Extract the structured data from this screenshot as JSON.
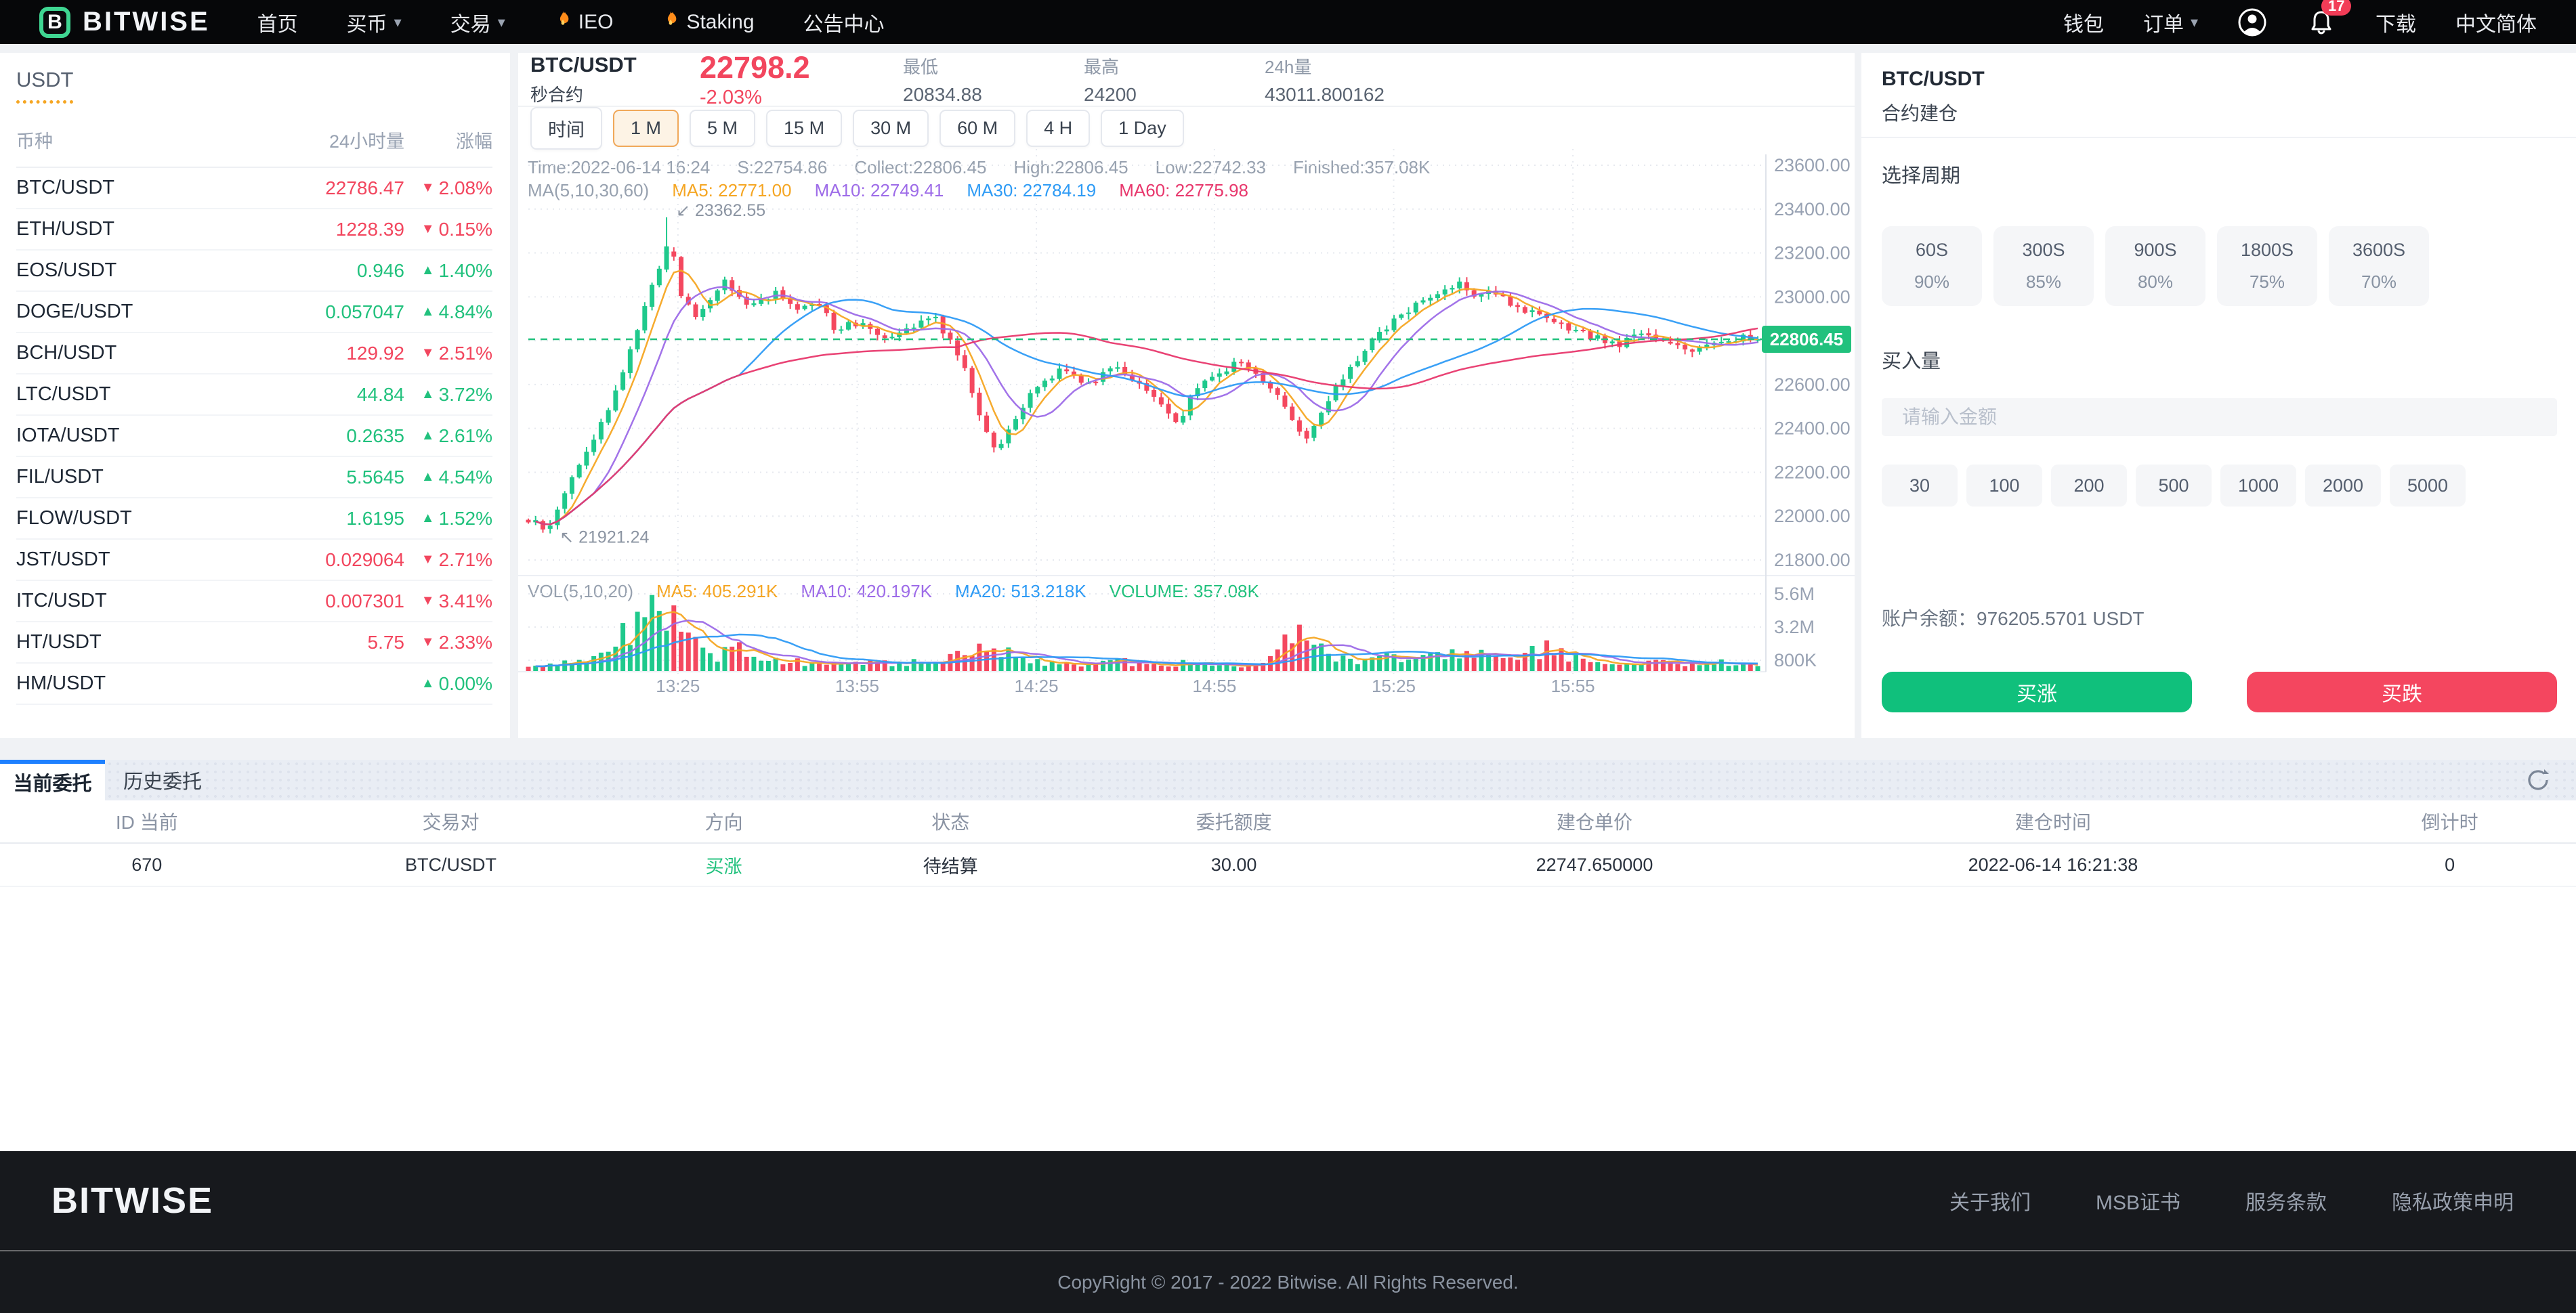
{
  "colors": {
    "green": "#21C17D",
    "red": "#F2465E",
    "blue": "#1E80FF",
    "orange": "#F5A623",
    "ma_purple": "#9D6BE8",
    "ma_blue": "#2E9BF5",
    "ma_pink": "#E8386D",
    "candle_up": "#1FC98C",
    "candle_down": "#F4485F"
  },
  "nav": {
    "brand": "BITWISE",
    "items": [
      {
        "label": "首页"
      },
      {
        "label": "买币",
        "caret": true
      },
      {
        "label": "交易",
        "caret": true
      },
      {
        "label": "IEO",
        "fire": true
      },
      {
        "label": "Staking",
        "fire": true
      },
      {
        "label": "公告中心"
      }
    ],
    "wallet": "钱包",
    "orders_label": "订单",
    "badge": "17",
    "download": "下载",
    "language": "中文简体"
  },
  "sidebar": {
    "tab": "USDT",
    "headers": [
      "币种",
      "24小时量",
      "涨幅"
    ],
    "pairs": [
      {
        "name": "BTC/USDT",
        "volume": "22786.47",
        "change": "2.08%",
        "dir": "down"
      },
      {
        "name": "ETH/USDT",
        "volume": "1228.39",
        "change": "0.15%",
        "dir": "down"
      },
      {
        "name": "EOS/USDT",
        "volume": "0.946",
        "change": "1.40%",
        "dir": "up"
      },
      {
        "name": "DOGE/USDT",
        "volume": "0.057047",
        "change": "4.84%",
        "dir": "up"
      },
      {
        "name": "BCH/USDT",
        "volume": "129.92",
        "change": "2.51%",
        "dir": "down"
      },
      {
        "name": "LTC/USDT",
        "volume": "44.84",
        "change": "3.72%",
        "dir": "up"
      },
      {
        "name": "IOTA/USDT",
        "volume": "0.2635",
        "change": "2.61%",
        "dir": "up"
      },
      {
        "name": "FIL/USDT",
        "volume": "5.5645",
        "change": "4.54%",
        "dir": "up"
      },
      {
        "name": "FLOW/USDT",
        "volume": "1.6195",
        "change": "1.52%",
        "dir": "up"
      },
      {
        "name": "JST/USDT",
        "volume": "0.029064",
        "change": "2.71%",
        "dir": "down"
      },
      {
        "name": "ITC/USDT",
        "volume": "0.007301",
        "change": "3.41%",
        "dir": "down"
      },
      {
        "name": "HT/USDT",
        "volume": "5.75",
        "change": "2.33%",
        "dir": "down"
      },
      {
        "name": "HM/USDT",
        "volume": "",
        "change": "0.00%",
        "dir": "up"
      }
    ]
  },
  "chart": {
    "header": {
      "pair": "BTC/USDT",
      "type": "秒合约",
      "price": "22798.2",
      "change": "-2.03%",
      "stats": [
        {
          "label": "最低",
          "value": "20834.88"
        },
        {
          "label": "最高",
          "value": "24200"
        },
        {
          "label": "24h量",
          "value": "43011.800162"
        }
      ]
    },
    "toolbar": {
      "label": "时间",
      "intervals": [
        "1 M",
        "5 M",
        "15 M",
        "30 M",
        "60 M",
        "4 H",
        "1 Day"
      ],
      "selected": "1 M"
    },
    "info_line1": [
      "Time:2022-06-14 16:24",
      "S:22754.86",
      "Collect:22806.45",
      "High:22806.45",
      "Low:22742.33",
      "Finished:357.08K"
    ],
    "info_line2": {
      "label": "MA(5,10,30,60)",
      "items": [
        {
          "text": "MA5: 22771.00",
          "color": "#F5A623"
        },
        {
          "text": "MA10: 22749.41",
          "color": "#9D6BE8"
        },
        {
          "text": "MA30: 22784.19",
          "color": "#2E9BF5"
        },
        {
          "text": "MA60: 22775.98",
          "color": "#E8386D"
        }
      ]
    },
    "vol_line": {
      "label": "VOL(5,10,20)",
      "items": [
        {
          "text": "MA5: 405.291K",
          "color": "#F5A623"
        },
        {
          "text": "MA10: 420.197K",
          "color": "#9D6BE8"
        },
        {
          "text": "MA20: 513.218K",
          "color": "#2E9BF5"
        },
        {
          "text": "VOLUME: 357.08K",
          "color": "#21C17D"
        }
      ]
    },
    "chart_data": {
      "type": "candlestick",
      "y_ticks": [
        "23600.00",
        "23400.00",
        "23200.00",
        "23000.00",
        "22800.00",
        "22600.00",
        "22400.00",
        "22200.00",
        "22000.00",
        "21800.00"
      ],
      "vol_ticks": [
        "5.6M",
        "3.2M",
        "800K"
      ],
      "x_ticks": [
        "13:25",
        "13:55",
        "14:25",
        "14:55",
        "15:25",
        "15:55"
      ],
      "price_range": [
        21800,
        23600
      ],
      "current_price": "22806.45",
      "current_price_value": 22806.45,
      "high_annotation": "23362.55",
      "low_annotation": "21921.24",
      "candle_count": 170,
      "price_path": [
        [
          0,
          21980
        ],
        [
          0.017,
          21935
        ],
        [
          0.03,
          22120
        ],
        [
          0.05,
          22320
        ],
        [
          0.07,
          22550
        ],
        [
          0.09,
          22880
        ],
        [
          0.1,
          23050
        ],
        [
          0.115,
          23250
        ],
        [
          0.125,
          23000
        ],
        [
          0.138,
          22900
        ],
        [
          0.158,
          23080
        ],
        [
          0.178,
          22950
        ],
        [
          0.2,
          23020
        ],
        [
          0.215,
          22940
        ],
        [
          0.235,
          22990
        ],
        [
          0.25,
          22850
        ],
        [
          0.27,
          22890
        ],
        [
          0.29,
          22820
        ],
        [
          0.31,
          22870
        ],
        [
          0.33,
          22910
        ],
        [
          0.35,
          22740
        ],
        [
          0.368,
          22450
        ],
        [
          0.382,
          22290
        ],
        [
          0.4,
          22480
        ],
        [
          0.415,
          22600
        ],
        [
          0.435,
          22680
        ],
        [
          0.455,
          22600
        ],
        [
          0.475,
          22690
        ],
        [
          0.495,
          22620
        ],
        [
          0.515,
          22500
        ],
        [
          0.527,
          22410
        ],
        [
          0.54,
          22560
        ],
        [
          0.56,
          22660
        ],
        [
          0.58,
          22700
        ],
        [
          0.6,
          22610
        ],
        [
          0.618,
          22490
        ],
        [
          0.632,
          22340
        ],
        [
          0.645,
          22460
        ],
        [
          0.66,
          22610
        ],
        [
          0.68,
          22760
        ],
        [
          0.7,
          22870
        ],
        [
          0.72,
          22960
        ],
        [
          0.74,
          23010
        ],
        [
          0.757,
          23080
        ],
        [
          0.77,
          22980
        ],
        [
          0.785,
          23030
        ],
        [
          0.805,
          22950
        ],
        [
          0.825,
          22900
        ],
        [
          0.845,
          22850
        ],
        [
          0.865,
          22820
        ],
        [
          0.885,
          22780
        ],
        [
          0.905,
          22830
        ],
        [
          0.925,
          22800
        ],
        [
          0.945,
          22760
        ],
        [
          0.965,
          22790
        ],
        [
          0.985,
          22815
        ],
        [
          1,
          22806.45
        ]
      ],
      "vol_path": [
        [
          0,
          320
        ],
        [
          0.02,
          520
        ],
        [
          0.05,
          950
        ],
        [
          0.08,
          2600
        ],
        [
          0.1,
          5400
        ],
        [
          0.115,
          4200
        ],
        [
          0.13,
          2300
        ],
        [
          0.15,
          1100
        ],
        [
          0.17,
          1500
        ],
        [
          0.2,
          820
        ],
        [
          0.23,
          600
        ],
        [
          0.26,
          900
        ],
        [
          0.3,
          520
        ],
        [
          0.33,
          740
        ],
        [
          0.36,
          1250
        ],
        [
          0.382,
          1850
        ],
        [
          0.41,
          760
        ],
        [
          0.45,
          520
        ],
        [
          0.48,
          700
        ],
        [
          0.51,
          430
        ],
        [
          0.54,
          620
        ],
        [
          0.57,
          420
        ],
        [
          0.6,
          520
        ],
        [
          0.632,
          3400
        ],
        [
          0.65,
          950
        ],
        [
          0.68,
          720
        ],
        [
          0.7,
          1250
        ],
        [
          0.73,
          820
        ],
        [
          0.757,
          1500
        ],
        [
          0.78,
          950
        ],
        [
          0.8,
          700
        ],
        [
          0.83,
          1700
        ],
        [
          0.86,
          620
        ],
        [
          0.89,
          520
        ],
        [
          0.92,
          800
        ],
        [
          0.95,
          430
        ],
        [
          0.97,
          620
        ],
        [
          1,
          357
        ]
      ]
    }
  },
  "panel": {
    "pair": "BTC/USDT",
    "title": "合约建仓",
    "period_label": "选择周期",
    "periods": [
      {
        "time": "60S",
        "odds": "90%"
      },
      {
        "time": "300S",
        "odds": "85%"
      },
      {
        "time": "900S",
        "odds": "80%"
      },
      {
        "time": "1800S",
        "odds": "75%"
      },
      {
        "time": "3600S",
        "odds": "70%"
      }
    ],
    "amount_label": "买入量",
    "input_placeholder": "请输入金额",
    "amounts": [
      "30",
      "100",
      "200",
      "500",
      "1000",
      "2000",
      "5000"
    ],
    "balance_label": "账户余额：",
    "balance": "976205.5701 USDT",
    "buy_up": "买涨",
    "buy_down": "买跌"
  },
  "orders": {
    "tabs": [
      "当前委托",
      "历史委托"
    ],
    "active": "当前委托",
    "headers": [
      "ID 当前",
      "交易对",
      "方向",
      "状态",
      "委托额度",
      "建仓单价",
      "建仓时间",
      "倒计时"
    ],
    "rows": [
      {
        "id": "670",
        "pair": "BTC/USDT",
        "direction": "买涨",
        "dir": "up",
        "status": "待结算",
        "amount": "30.00",
        "price": "22747.650000",
        "time": "2022-06-14 16:21:38",
        "countdown": "0"
      }
    ]
  },
  "footer": {
    "brand": "BITWISE",
    "links": [
      "关于我们",
      "MSB证书",
      "服务条款",
      "隐私政策申明"
    ],
    "copyright": "CopyRight © 2017 - 2022 Bitwise. All Rights Reserved."
  }
}
